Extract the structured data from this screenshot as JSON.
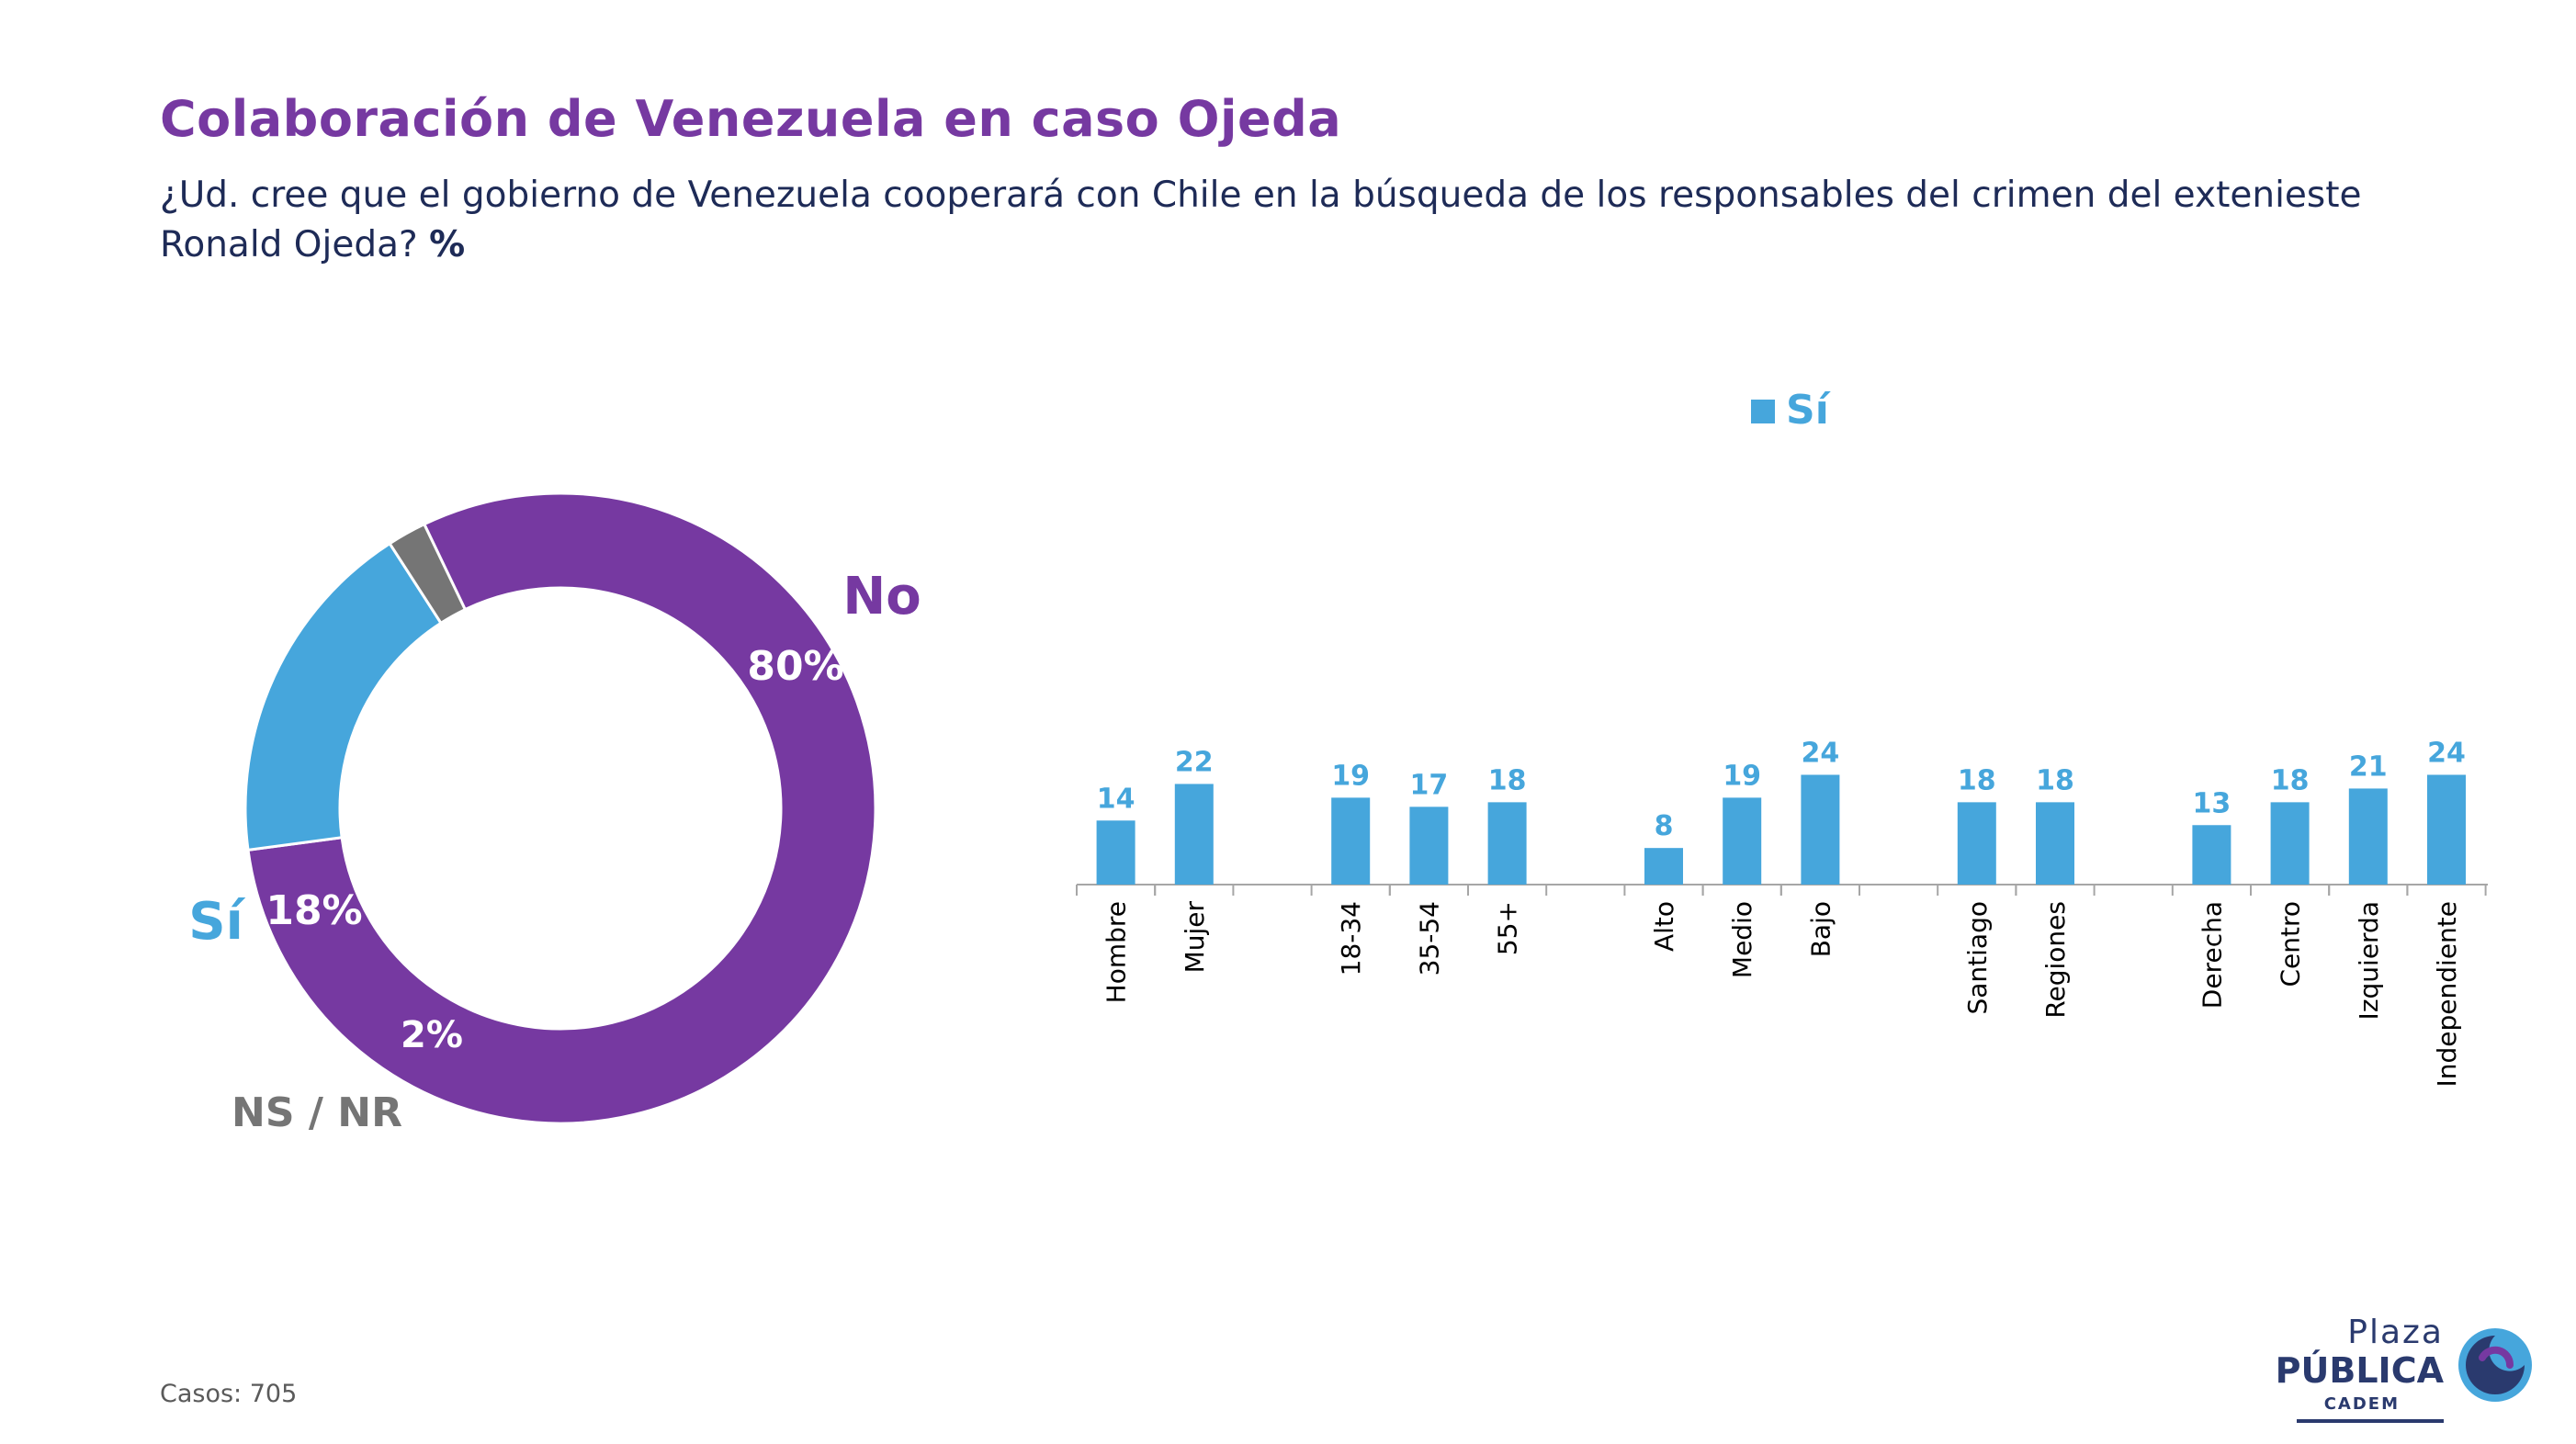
{
  "header": {
    "title": "Colaboración de Venezuela en caso Ojeda",
    "question": "¿Ud. cree que el gobierno de Venezuela cooperará con Chile en la búsqueda de los responsables del crimen del extenieste Ronald Ojeda?",
    "question_suffix": "%"
  },
  "chart_data": [
    {
      "type": "pie",
      "style": "donut",
      "slices": [
        {
          "label": "No",
          "value": 80,
          "value_label": "80%",
          "color": "#7639a1"
        },
        {
          "label": "Sí",
          "value": 18,
          "value_label": "18%",
          "color": "#46a6dc"
        },
        {
          "label": "NS / NR",
          "value": 2,
          "value_label": "2%",
          "color": "#757575"
        }
      ]
    },
    {
      "type": "bar",
      "legend": {
        "label": "Sí",
        "color": "#46a6dc",
        "placement": "top"
      },
      "series": [
        {
          "name": "Sí",
          "color": "#46a6dc"
        }
      ],
      "groups": [
        {
          "categories": [
            "Hombre",
            "Mujer"
          ],
          "values": [
            14,
            22
          ]
        },
        {
          "categories": [
            "18-34",
            "35-54",
            "55+"
          ],
          "values": [
            19,
            17,
            18
          ]
        },
        {
          "categories": [
            "Alto",
            "Medio",
            "Bajo"
          ],
          "values": [
            8,
            19,
            24
          ]
        },
        {
          "categories": [
            "Santiago",
            "Regiones"
          ],
          "values": [
            18,
            18
          ]
        },
        {
          "categories": [
            "Derecha",
            "Centro",
            "Izquierda",
            "Independiente"
          ],
          "values": [
            13,
            18,
            21,
            24
          ]
        }
      ]
    }
  ],
  "footer": {
    "casos": "Casos: 705"
  },
  "logo": {
    "line1": "Plaza",
    "line2": "PÚBLICA",
    "line3": "CADEM"
  }
}
